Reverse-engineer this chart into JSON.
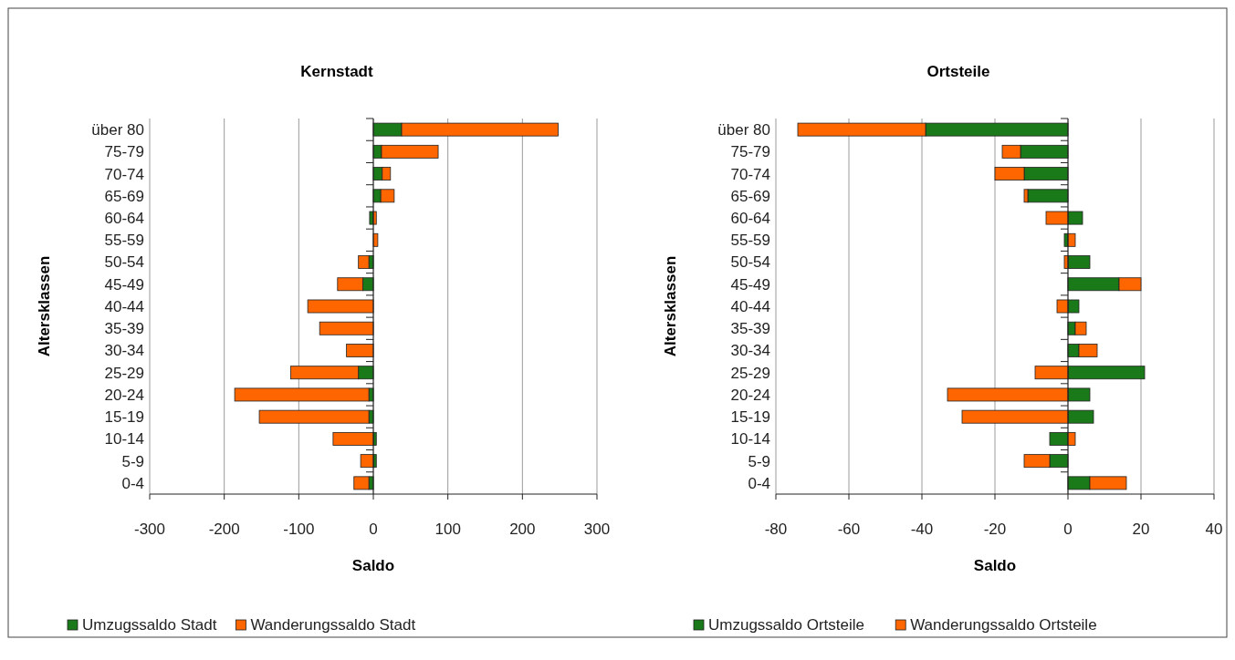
{
  "chart_data": [
    {
      "type": "bar",
      "title": "Kernstadt",
      "xlabel": "Saldo",
      "ylabel": "Altersklassen",
      "orientation": "horizontal",
      "stacked": true,
      "categories": [
        "über 80",
        "75-79",
        "70-74",
        "65-69",
        "60-64",
        "55-59",
        "50-54",
        "45-49",
        "40-44",
        "35-39",
        "30-34",
        "25-29",
        "20-24",
        "15-19",
        "10-14",
        "5-9",
        "0-4"
      ],
      "series": [
        {
          "name": "Umzugssaldo Stadt",
          "color": "#1a7a1a",
          "values": [
            38,
            11,
            12,
            10,
            -5,
            0,
            -6,
            -14,
            null,
            null,
            null,
            -20,
            -6,
            -6,
            4,
            4,
            -6
          ]
        },
        {
          "name": "Wanderungssaldo Stadt",
          "color": "#ff6600",
          "values": [
            210,
            76,
            11,
            18,
            4,
            6,
            -14,
            -34,
            -88,
            -72,
            -36,
            -91,
            -180,
            -147,
            -54,
            -17,
            -20
          ]
        }
      ],
      "xlim": [
        -300,
        300
      ],
      "xticks": [
        -300,
        -200,
        -100,
        0,
        100,
        200,
        300
      ],
      "grid": "x",
      "legend": "bottom"
    },
    {
      "type": "bar",
      "title": "Ortsteile",
      "xlabel": "Saldo",
      "ylabel": "Altersklassen",
      "orientation": "horizontal",
      "stacked": true,
      "categories": [
        "über 80",
        "75-79",
        "70-74",
        "65-69",
        "60-64",
        "55-59",
        "50-54",
        "45-49",
        "40-44",
        "35-39",
        "30-34",
        "25-29",
        "20-24",
        "15-19",
        "10-14",
        "5-9",
        "0-4"
      ],
      "series": [
        {
          "name": "Umzugssaldo Ortsteile",
          "color": "#1a7a1a",
          "values": [
            -39,
            -13,
            -12,
            -11,
            4,
            -1,
            6,
            14,
            3,
            2,
            3,
            21,
            6,
            7,
            -5,
            -5,
            6
          ]
        },
        {
          "name": "Wanderungssaldo Ortsteile",
          "color": "#ff6600",
          "values": [
            -35,
            -5,
            -8,
            -1,
            -6,
            2,
            -1,
            6,
            -3,
            3,
            5,
            -9,
            -33,
            -29,
            2,
            -7,
            10
          ]
        }
      ],
      "xlim": [
        -80,
        40
      ],
      "xticks": [
        -80,
        -60,
        -40,
        -20,
        0,
        20,
        40
      ],
      "grid": "x",
      "legend": "bottom"
    }
  ]
}
